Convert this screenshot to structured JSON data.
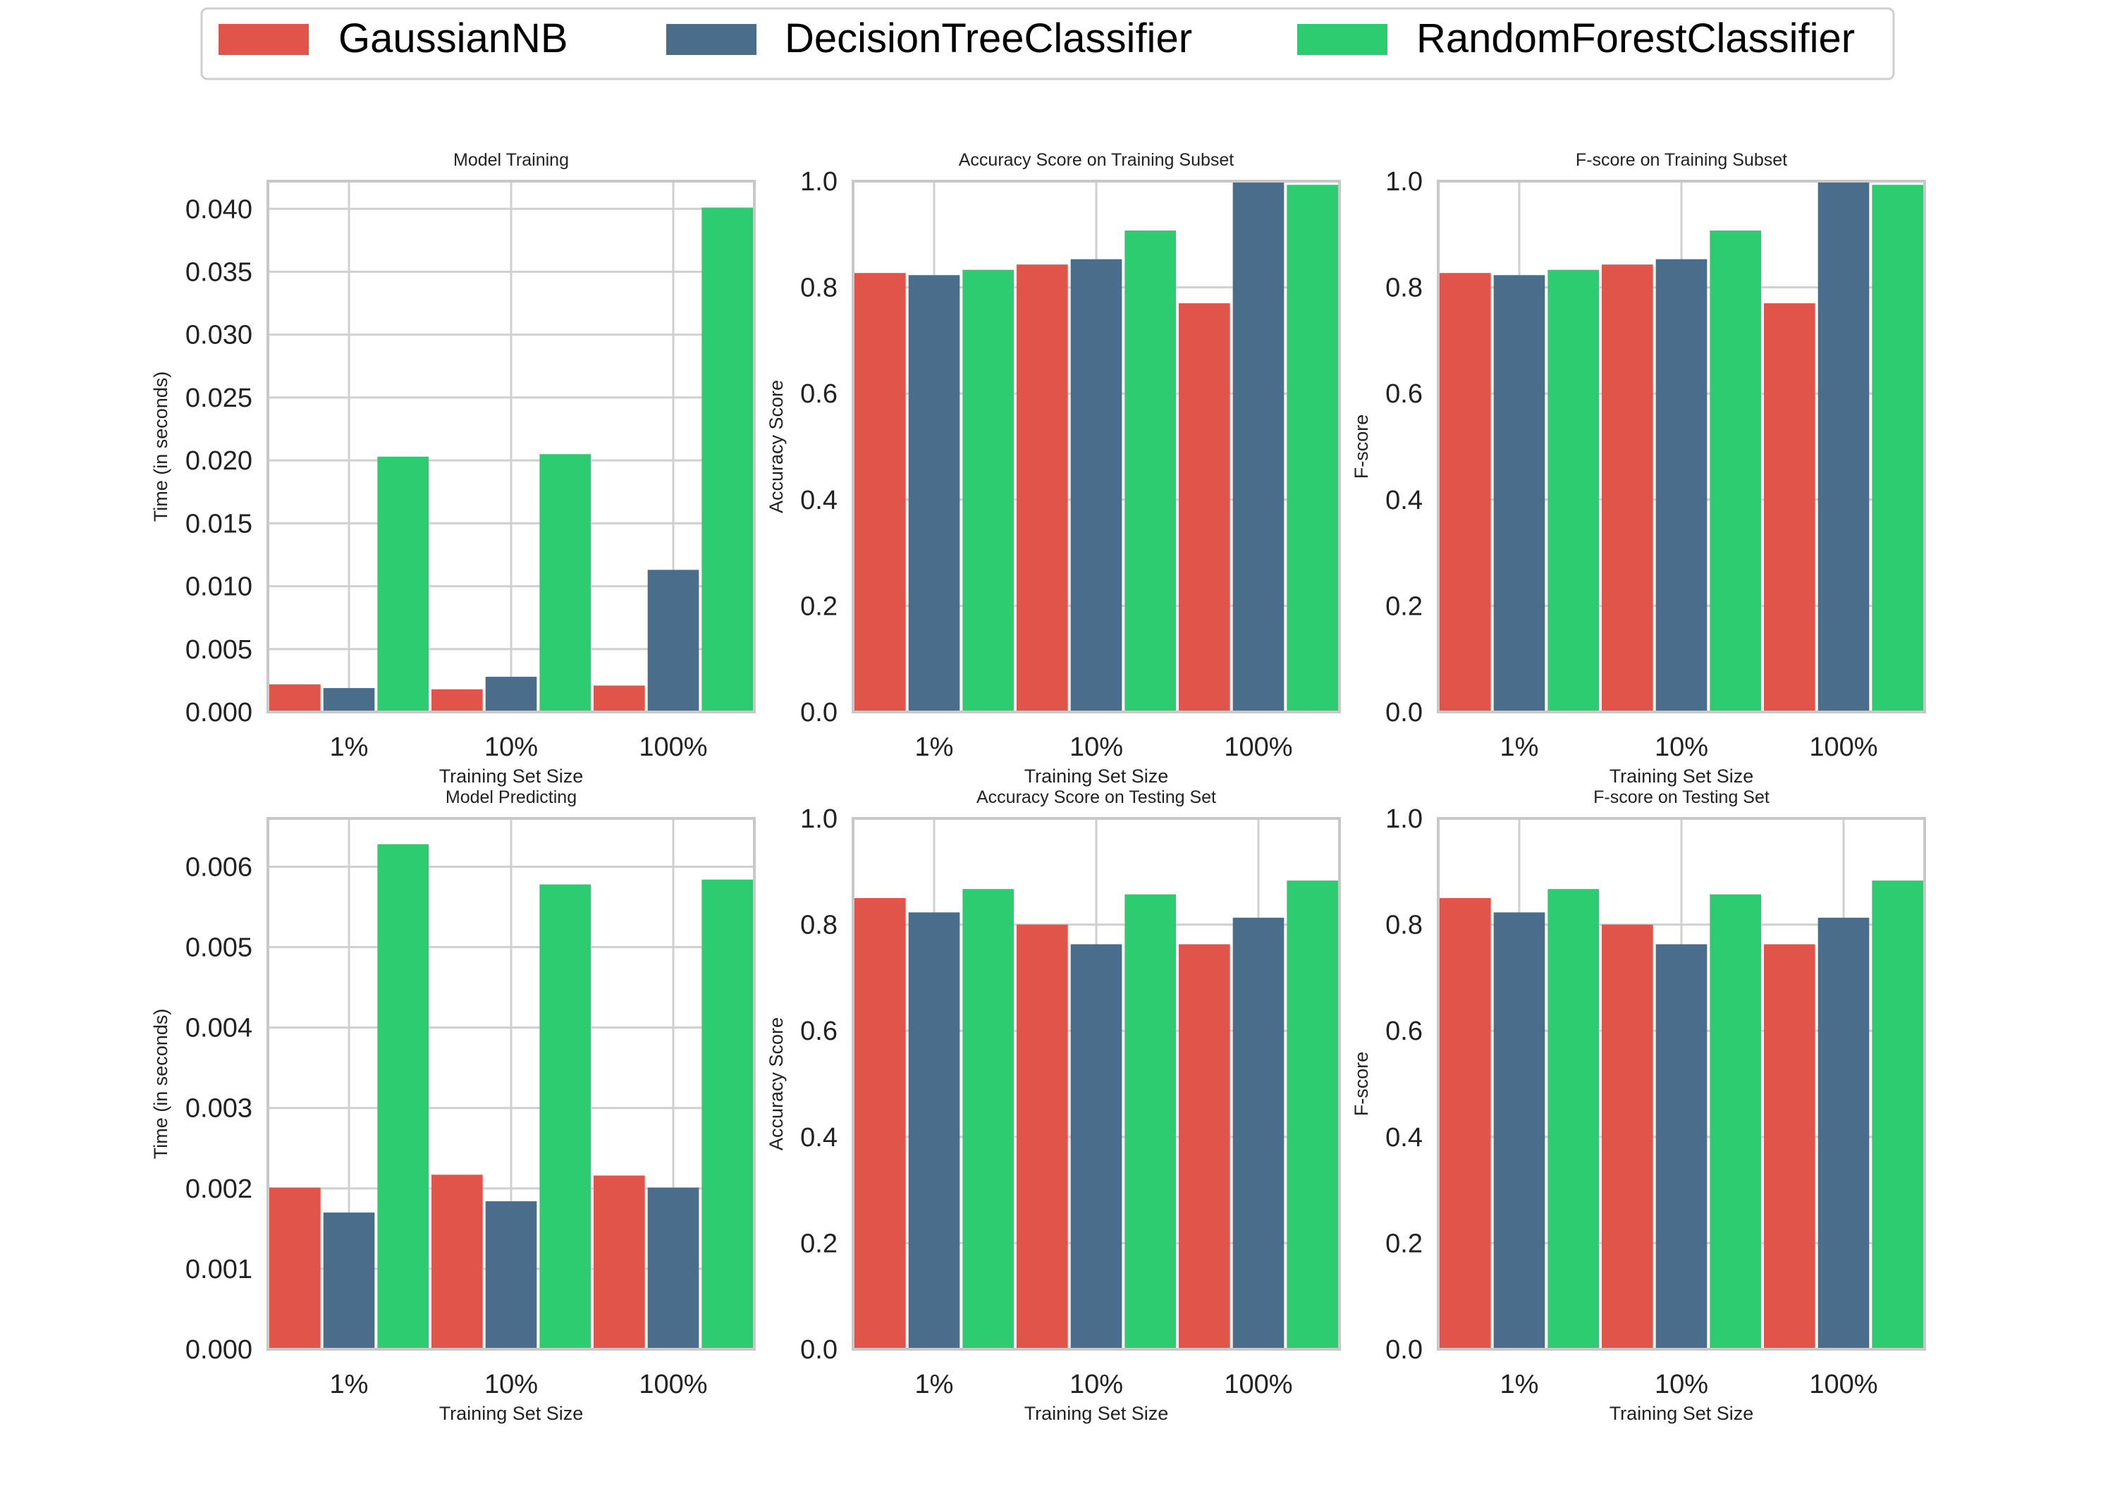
{
  "colors": {
    "GaussianNB": "#e0544a",
    "DecisionTreeClassifier": "#4b6d8c",
    "RandomForestClassifier": "#2ecc71",
    "grid": "#d0d0d0",
    "frame": "#c8c8c8"
  },
  "legend": {
    "items": [
      "GaussianNB",
      "DecisionTreeClassifier",
      "RandomForestClassifier"
    ]
  },
  "chart_data": [
    {
      "type": "bar",
      "title": "Model Training",
      "xlabel": "Training Set Size",
      "ylabel": "Time (in seconds)",
      "categories": [
        "1%",
        "10%",
        "100%"
      ],
      "ylim": [
        0,
        0.0422
      ],
      "yticks": [
        "0.000",
        "0.005",
        "0.010",
        "0.015",
        "0.020",
        "0.025",
        "0.030",
        "0.035",
        "0.040"
      ],
      "series": [
        {
          "name": "GaussianNB",
          "values": [
            0.0022,
            0.0018,
            0.0021
          ]
        },
        {
          "name": "DecisionTreeClassifier",
          "values": [
            0.0019,
            0.0028,
            0.0113
          ]
        },
        {
          "name": "RandomForestClassifier",
          "values": [
            0.0203,
            0.0205,
            0.0401
          ]
        }
      ]
    },
    {
      "type": "bar",
      "title": "Accuracy Score on Training Subset",
      "xlabel": "Training Set Size",
      "ylabel": "Accuracy Score",
      "categories": [
        "1%",
        "10%",
        "100%"
      ],
      "ylim": [
        0,
        1.0
      ],
      "yticks": [
        "0.0",
        "0.2",
        "0.4",
        "0.6",
        "0.8",
        "1.0"
      ],
      "series": [
        {
          "name": "GaussianNB",
          "values": [
            0.827,
            0.843,
            0.77
          ]
        },
        {
          "name": "DecisionTreeClassifier",
          "values": [
            0.823,
            0.853,
            1.0
          ]
        },
        {
          "name": "RandomForestClassifier",
          "values": [
            0.833,
            0.907,
            0.993
          ]
        }
      ]
    },
    {
      "type": "bar",
      "title": "F-score on Training Subset",
      "xlabel": "Training Set Size",
      "ylabel": "F-score",
      "categories": [
        "1%",
        "10%",
        "100%"
      ],
      "ylim": [
        0,
        1.0
      ],
      "yticks": [
        "0.0",
        "0.2",
        "0.4",
        "0.6",
        "0.8",
        "1.0"
      ],
      "series": [
        {
          "name": "GaussianNB",
          "values": [
            0.827,
            0.843,
            0.77
          ]
        },
        {
          "name": "DecisionTreeClassifier",
          "values": [
            0.823,
            0.853,
            1.0
          ]
        },
        {
          "name": "RandomForestClassifier",
          "values": [
            0.833,
            0.907,
            0.993
          ]
        }
      ]
    },
    {
      "type": "bar",
      "title": "Model Predicting",
      "xlabel": "Training Set Size",
      "ylabel": "Time (in seconds)",
      "categories": [
        "1%",
        "10%",
        "100%"
      ],
      "ylim": [
        0,
        0.0066
      ],
      "yticks": [
        "0.000",
        "0.001",
        "0.002",
        "0.003",
        "0.004",
        "0.005",
        "0.006"
      ],
      "series": [
        {
          "name": "GaussianNB",
          "values": [
            0.00201,
            0.00217,
            0.00216
          ]
        },
        {
          "name": "DecisionTreeClassifier",
          "values": [
            0.0017,
            0.00184,
            0.00201
          ]
        },
        {
          "name": "RandomForestClassifier",
          "values": [
            0.00628,
            0.00578,
            0.00584
          ]
        }
      ]
    },
    {
      "type": "bar",
      "title": "Accuracy Score on Testing Set",
      "xlabel": "Training Set Size",
      "ylabel": "Accuracy Score",
      "categories": [
        "1%",
        "10%",
        "100%"
      ],
      "ylim": [
        0,
        1.0
      ],
      "yticks": [
        "0.0",
        "0.2",
        "0.4",
        "0.6",
        "0.8",
        "1.0"
      ],
      "series": [
        {
          "name": "GaussianNB",
          "values": [
            0.85,
            0.8,
            0.763
          ]
        },
        {
          "name": "DecisionTreeClassifier",
          "values": [
            0.823,
            0.763,
            0.813
          ]
        },
        {
          "name": "RandomForestClassifier",
          "values": [
            0.867,
            0.857,
            0.883
          ]
        }
      ]
    },
    {
      "type": "bar",
      "title": "F-score on Testing Set",
      "xlabel": "Training Set Size",
      "ylabel": "F-score",
      "categories": [
        "1%",
        "10%",
        "100%"
      ],
      "ylim": [
        0,
        1.0
      ],
      "yticks": [
        "0.0",
        "0.2",
        "0.4",
        "0.6",
        "0.8",
        "1.0"
      ],
      "series": [
        {
          "name": "GaussianNB",
          "values": [
            0.85,
            0.8,
            0.763
          ]
        },
        {
          "name": "DecisionTreeClassifier",
          "values": [
            0.823,
            0.763,
            0.813
          ]
        },
        {
          "name": "RandomForestClassifier",
          "values": [
            0.867,
            0.857,
            0.883
          ]
        }
      ]
    }
  ]
}
